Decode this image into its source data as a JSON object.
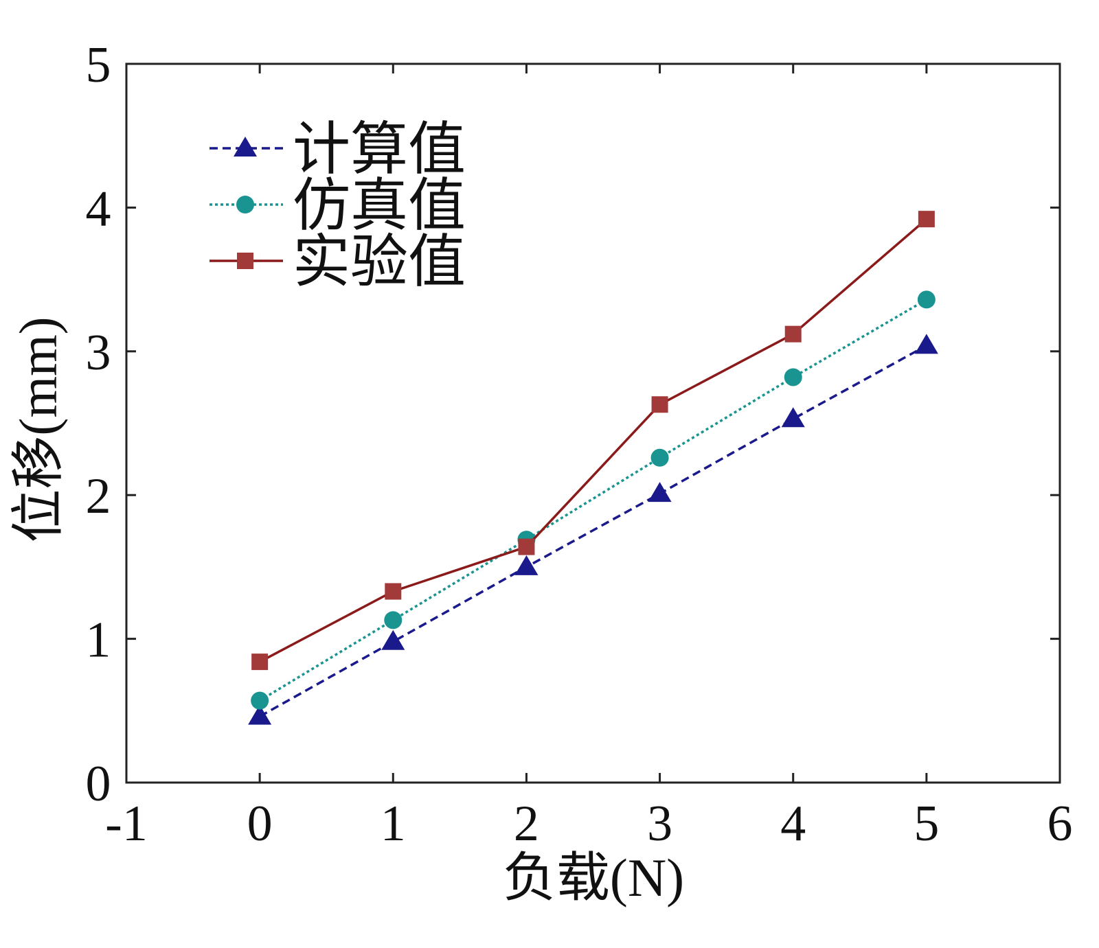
{
  "chart_data": {
    "type": "line",
    "title": "",
    "xlabel": "负载(N)",
    "ylabel": "位移(mm)",
    "xlim": [
      -1,
      6
    ],
    "ylim": [
      0,
      5
    ],
    "xticks": [
      "-1",
      "0",
      "1",
      "2",
      "3",
      "4",
      "5",
      "6"
    ],
    "yticks": [
      "0",
      "1",
      "2",
      "3",
      "4",
      "5"
    ],
    "grid": false,
    "legend_position": "top-left",
    "x": [
      0,
      1,
      2,
      3,
      4,
      5
    ],
    "series": [
      {
        "name": "计算值",
        "values": [
          0.46,
          0.98,
          1.5,
          2.01,
          2.53,
          3.04
        ],
        "color": "#1a1a8c",
        "marker": "triangle",
        "dash": "dashed"
      },
      {
        "name": "仿真值",
        "values": [
          0.57,
          1.13,
          1.69,
          2.26,
          2.82,
          3.36
        ],
        "color": "#1a9490",
        "marker": "circle",
        "dash": "dotted"
      },
      {
        "name": "实验值",
        "values": [
          0.84,
          1.33,
          1.64,
          2.63,
          3.12,
          3.92
        ],
        "color": "#a33a3a",
        "line_color": "#8b1a1a",
        "marker": "square",
        "dash": "solid"
      }
    ]
  }
}
